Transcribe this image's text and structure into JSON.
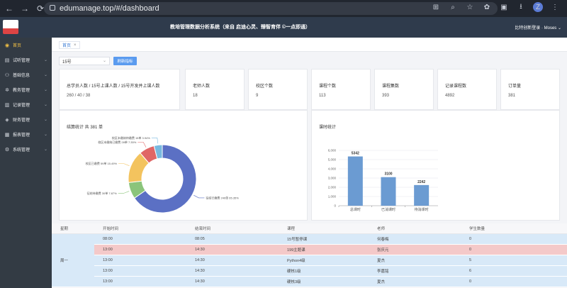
{
  "browser": {
    "url": "edumanage.top/#/dashboard"
  },
  "app": {
    "title": "教培管理数据分析系统（来自 启迪心灵、臻智育伴 ©一点即通）",
    "user": "比特创新登录 · Moses"
  },
  "sidebar": {
    "items": [
      {
        "label": "首页",
        "icon": "home-icon",
        "active": true
      },
      {
        "label": "试听管理",
        "icon": "audition-icon"
      },
      {
        "label": "基础信息",
        "icon": "user-icon"
      },
      {
        "label": "教务管理",
        "icon": "settings-icon"
      },
      {
        "label": "记录管理",
        "icon": "record-icon"
      },
      {
        "label": "财务管理",
        "icon": "finance-icon"
      },
      {
        "label": "报表管理",
        "icon": "report-icon"
      },
      {
        "label": "系统管理",
        "icon": "system-icon"
      }
    ]
  },
  "tabs": [
    {
      "label": "首页"
    }
  ],
  "filter": {
    "value": "15号",
    "refresh_label": "刷新指标"
  },
  "stats": [
    {
      "title": "总学员人数 / 15号上课人数 / 15号开发并上课人数",
      "value": "260 / 40 / 38"
    },
    {
      "title": "老师人数",
      "value": "18"
    },
    {
      "title": "校区个数",
      "value": "9"
    },
    {
      "title": "课程个数",
      "value": "113"
    },
    {
      "title": "课程集数",
      "value": "393"
    },
    {
      "title": "记录课程数",
      "value": "4892"
    },
    {
      "title": "订单量",
      "value": "381"
    }
  ],
  "chart_data": [
    {
      "type": "pie",
      "title": "结算统计  共 381 单",
      "slices": [
        {
          "label": "征结已缴费 249单 65.35%",
          "value": 249,
          "color": "#5b70c4"
        },
        {
          "label": "征结待缴费 30单 7.87%",
          "value": 30,
          "color": "#8bc47b"
        },
        {
          "label": "校区已缴费 59单 15.49%",
          "value": 59,
          "color": "#f3c35e"
        },
        {
          "label": "校区未缴纳已缴费 28单 7.35%",
          "value": 28,
          "color": "#e06666"
        },
        {
          "label": "校区未缴纳待缴费 15单 3.94%",
          "value": 15,
          "color": "#78b9df"
        }
      ]
    },
    {
      "type": "bar",
      "title": "课时统计",
      "categories": [
        "总课时",
        "已消课时",
        "待消课时"
      ],
      "values": [
        5342,
        3100,
        2242
      ],
      "ylim": [
        0,
        6000
      ],
      "yticks": [
        "0",
        "1,000",
        "2,000",
        "3,000",
        "4,000",
        "5,000",
        "6,000"
      ],
      "color": "#6b9bd2"
    }
  ],
  "schedule": {
    "headers": [
      "星期",
      "开始时间",
      "结束时间",
      "课程",
      "老师",
      "学生数量"
    ],
    "day": "周一",
    "rows": [
      {
        "start": "08:00",
        "end": "08:05",
        "course": "15号暂停课",
        "teacher": "何春梅",
        "count": "0",
        "style": "blue"
      },
      {
        "start": "13:00",
        "end": "14:30",
        "course": "199主题课",
        "teacher": "张庆元",
        "count": "0",
        "style": "red"
      },
      {
        "start": "13:00",
        "end": "14:30",
        "course": "Python4级",
        "teacher": "夏杰",
        "count": "5",
        "style": "blue"
      },
      {
        "start": "13:00",
        "end": "14:30",
        "course": "硬核1级",
        "teacher": "李嘉铭",
        "count": "6",
        "style": "blue"
      },
      {
        "start": "13:00",
        "end": "14:30",
        "course": "硬核3级",
        "teacher": "夏杰",
        "count": "0",
        "style": "blue"
      }
    ]
  }
}
